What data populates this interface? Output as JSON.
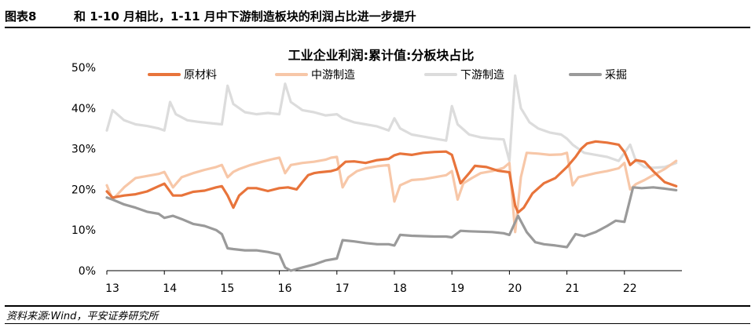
{
  "header": {
    "label": "图表8",
    "title": "和 1-10 月相比，1-11 月中下游制造板块的利润占比进一步提升"
  },
  "source": "资料来源:Wind，平安证券研究所",
  "chart_data": {
    "type": "line",
    "title": "工业企业利润:累计值:分板块占比",
    "ylim": [
      0,
      50
    ],
    "yticks": [
      "0%",
      "10%",
      "20%",
      "30%",
      "40%",
      "50%"
    ],
    "xlim": [
      13,
      23
    ],
    "xticks": [
      "13",
      "14",
      "15",
      "16",
      "17",
      "18",
      "19",
      "20",
      "21",
      "22"
    ],
    "colors": {
      "原材料": "#e8743b",
      "中游制造": "#f7c7a8",
      "下游制造": "#dcdcdc",
      "采掘": "#9a9a9a"
    },
    "series": [
      {
        "name": "原材料",
        "points": [
          [
            13.0,
            19.5
          ],
          [
            13.1,
            18
          ],
          [
            13.3,
            18.5
          ],
          [
            13.5,
            18.8
          ],
          [
            13.7,
            19.5
          ],
          [
            13.9,
            20.8
          ],
          [
            14.0,
            21.4
          ],
          [
            14.15,
            18.5
          ],
          [
            14.3,
            18.5
          ],
          [
            14.5,
            19.4
          ],
          [
            14.7,
            19.7
          ],
          [
            14.9,
            20.5
          ],
          [
            15.0,
            20.8
          ],
          [
            15.1,
            18.5
          ],
          [
            15.2,
            15.5
          ],
          [
            15.3,
            18.5
          ],
          [
            15.45,
            20.3
          ],
          [
            15.6,
            20.3
          ],
          [
            15.8,
            19.6
          ],
          [
            16.0,
            20.3
          ],
          [
            16.15,
            20.5
          ],
          [
            16.3,
            20
          ],
          [
            16.4,
            21.8
          ],
          [
            16.5,
            23.5
          ],
          [
            16.6,
            24
          ],
          [
            16.7,
            24.2
          ],
          [
            16.9,
            24.5
          ],
          [
            17.0,
            24.9
          ],
          [
            17.15,
            26.8
          ],
          [
            17.3,
            26.9
          ],
          [
            17.5,
            26.5
          ],
          [
            17.7,
            27.2
          ],
          [
            17.9,
            27.5
          ],
          [
            18.0,
            28.4
          ],
          [
            18.1,
            28.8
          ],
          [
            18.3,
            28.5
          ],
          [
            18.5,
            29
          ],
          [
            18.7,
            29.2
          ],
          [
            18.9,
            29.3
          ],
          [
            19.0,
            28.5
          ],
          [
            19.15,
            21.5
          ],
          [
            19.3,
            24
          ],
          [
            19.4,
            25.8
          ],
          [
            19.6,
            25.5
          ],
          [
            19.8,
            24.6
          ],
          [
            20.0,
            24.2
          ],
          [
            20.1,
            16
          ],
          [
            20.15,
            14.3
          ],
          [
            20.25,
            15.5
          ],
          [
            20.4,
            19
          ],
          [
            20.6,
            21.5
          ],
          [
            20.8,
            22.8
          ],
          [
            21.0,
            25.5
          ],
          [
            21.15,
            28
          ],
          [
            21.25,
            30
          ],
          [
            21.35,
            31.3
          ],
          [
            21.5,
            31.8
          ],
          [
            21.7,
            31.5
          ],
          [
            21.9,
            31
          ],
          [
            22.0,
            29.2
          ],
          [
            22.1,
            26
          ],
          [
            22.2,
            27.2
          ],
          [
            22.35,
            26.8
          ],
          [
            22.5,
            24.5
          ],
          [
            22.7,
            21.8
          ],
          [
            22.9,
            20.8
          ]
        ]
      },
      {
        "name": "中游制造",
        "points": [
          [
            13.0,
            21
          ],
          [
            13.1,
            17.5
          ],
          [
            13.3,
            20.5
          ],
          [
            13.5,
            22.8
          ],
          [
            13.7,
            23.3
          ],
          [
            13.9,
            23.8
          ],
          [
            14.0,
            24.3
          ],
          [
            14.15,
            20.5
          ],
          [
            14.3,
            23
          ],
          [
            14.5,
            24
          ],
          [
            14.7,
            24.8
          ],
          [
            14.9,
            25.5
          ],
          [
            15.0,
            26
          ],
          [
            15.1,
            23
          ],
          [
            15.2,
            24.3
          ],
          [
            15.3,
            25
          ],
          [
            15.5,
            26
          ],
          [
            15.7,
            26.8
          ],
          [
            15.9,
            27.5
          ],
          [
            16.0,
            27.8
          ],
          [
            16.1,
            24
          ],
          [
            16.2,
            26
          ],
          [
            16.4,
            26.5
          ],
          [
            16.6,
            26.8
          ],
          [
            16.8,
            27.3
          ],
          [
            16.9,
            27.8
          ],
          [
            17.0,
            28
          ],
          [
            17.1,
            20.5
          ],
          [
            17.2,
            23
          ],
          [
            17.35,
            24.5
          ],
          [
            17.5,
            25.2
          ],
          [
            17.7,
            25.7
          ],
          [
            17.9,
            26
          ],
          [
            18.0,
            17
          ],
          [
            18.1,
            21
          ],
          [
            18.3,
            22.3
          ],
          [
            18.5,
            22.5
          ],
          [
            18.7,
            23
          ],
          [
            18.9,
            23.5
          ],
          [
            19.0,
            24.5
          ],
          [
            19.1,
            17.5
          ],
          [
            19.2,
            21.5
          ],
          [
            19.35,
            22.8
          ],
          [
            19.5,
            24
          ],
          [
            19.7,
            24.5
          ],
          [
            19.9,
            25.3
          ],
          [
            20.0,
            26.5
          ],
          [
            20.1,
            9.5
          ],
          [
            20.2,
            23
          ],
          [
            20.3,
            29
          ],
          [
            20.5,
            28.8
          ],
          [
            20.7,
            28.5
          ],
          [
            20.9,
            28.6
          ],
          [
            21.0,
            29
          ],
          [
            21.1,
            21
          ],
          [
            21.2,
            23
          ],
          [
            21.35,
            23.5
          ],
          [
            21.5,
            24
          ],
          [
            21.7,
            24.5
          ],
          [
            21.9,
            25.2
          ],
          [
            22.0,
            26.5
          ],
          [
            22.1,
            20
          ],
          [
            22.2,
            21.3
          ],
          [
            22.35,
            22.3
          ],
          [
            22.5,
            23.5
          ],
          [
            22.7,
            25
          ],
          [
            22.9,
            27
          ]
        ]
      },
      {
        "name": "下游制造",
        "points": [
          [
            13.0,
            34.5
          ],
          [
            13.1,
            39.5
          ],
          [
            13.3,
            37
          ],
          [
            13.5,
            36
          ],
          [
            13.7,
            35.6
          ],
          [
            13.9,
            35
          ],
          [
            14.0,
            34.5
          ],
          [
            14.1,
            41.5
          ],
          [
            14.2,
            38.5
          ],
          [
            14.4,
            37
          ],
          [
            14.6,
            36.6
          ],
          [
            14.8,
            36.3
          ],
          [
            15.0,
            36
          ],
          [
            15.1,
            45.5
          ],
          [
            15.2,
            41
          ],
          [
            15.4,
            39
          ],
          [
            15.6,
            38.5
          ],
          [
            15.8,
            38.8
          ],
          [
            16.0,
            38.5
          ],
          [
            16.1,
            46
          ],
          [
            16.2,
            41.5
          ],
          [
            16.4,
            39.5
          ],
          [
            16.6,
            39
          ],
          [
            16.8,
            38.2
          ],
          [
            17.0,
            38.5
          ],
          [
            17.1,
            37.5
          ],
          [
            17.3,
            36.5
          ],
          [
            17.5,
            36
          ],
          [
            17.7,
            35.5
          ],
          [
            17.9,
            34.5
          ],
          [
            18.0,
            37.5
          ],
          [
            18.1,
            35
          ],
          [
            18.3,
            33.5
          ],
          [
            18.5,
            33
          ],
          [
            18.7,
            32.5
          ],
          [
            18.9,
            32
          ],
          [
            19.0,
            40.5
          ],
          [
            19.1,
            36
          ],
          [
            19.3,
            33.5
          ],
          [
            19.5,
            32.8
          ],
          [
            19.7,
            32.5
          ],
          [
            19.9,
            32.3
          ],
          [
            20.0,
            27
          ],
          [
            20.1,
            48
          ],
          [
            20.2,
            40
          ],
          [
            20.35,
            36.5
          ],
          [
            20.5,
            35
          ],
          [
            20.7,
            34
          ],
          [
            20.9,
            33.5
          ],
          [
            21.0,
            32.5
          ],
          [
            21.1,
            31
          ],
          [
            21.3,
            29
          ],
          [
            21.5,
            28.5
          ],
          [
            21.7,
            28
          ],
          [
            21.9,
            27
          ],
          [
            22.0,
            29
          ],
          [
            22.1,
            31
          ],
          [
            22.2,
            27
          ],
          [
            22.35,
            25.5
          ],
          [
            22.5,
            25.3
          ],
          [
            22.7,
            25.5
          ],
          [
            22.9,
            26.5
          ]
        ]
      },
      {
        "name": "采掘",
        "points": [
          [
            13.0,
            18
          ],
          [
            13.1,
            17.5
          ],
          [
            13.3,
            16.3
          ],
          [
            13.5,
            15.5
          ],
          [
            13.7,
            14.5
          ],
          [
            13.9,
            14
          ],
          [
            14.0,
            13
          ],
          [
            14.15,
            13.5
          ],
          [
            14.3,
            12.7
          ],
          [
            14.5,
            11.5
          ],
          [
            14.7,
            11
          ],
          [
            14.9,
            10
          ],
          [
            15.0,
            9
          ],
          [
            15.1,
            5.5
          ],
          [
            15.2,
            5.3
          ],
          [
            15.4,
            5
          ],
          [
            15.6,
            5
          ],
          [
            15.8,
            4.6
          ],
          [
            16.0,
            4
          ],
          [
            16.1,
            0.8
          ],
          [
            16.2,
            0
          ],
          [
            16.4,
            0.8
          ],
          [
            16.6,
            1.5
          ],
          [
            16.8,
            2.5
          ],
          [
            17.0,
            3
          ],
          [
            17.1,
            7.5
          ],
          [
            17.3,
            7.2
          ],
          [
            17.5,
            6.8
          ],
          [
            17.7,
            6.5
          ],
          [
            17.9,
            6.5
          ],
          [
            18.0,
            6.2
          ],
          [
            18.1,
            8.8
          ],
          [
            18.3,
            8.6
          ],
          [
            18.5,
            8.5
          ],
          [
            18.7,
            8.4
          ],
          [
            18.9,
            8.4
          ],
          [
            19.0,
            8.2
          ],
          [
            19.15,
            9.8
          ],
          [
            19.3,
            9.7
          ],
          [
            19.5,
            9.6
          ],
          [
            19.7,
            9.5
          ],
          [
            19.9,
            9.2
          ],
          [
            20.0,
            8.8
          ],
          [
            20.15,
            13.5
          ],
          [
            20.3,
            9.5
          ],
          [
            20.45,
            7
          ],
          [
            20.6,
            6.5
          ],
          [
            20.8,
            6.2
          ],
          [
            21.0,
            5.8
          ],
          [
            21.15,
            9
          ],
          [
            21.3,
            8.5
          ],
          [
            21.5,
            9.5
          ],
          [
            21.7,
            11
          ],
          [
            21.85,
            12.3
          ],
          [
            22.0,
            12
          ],
          [
            22.15,
            20.5
          ],
          [
            22.3,
            20.3
          ],
          [
            22.5,
            20.5
          ],
          [
            22.7,
            20.2
          ],
          [
            22.9,
            19.8
          ]
        ]
      }
    ]
  }
}
